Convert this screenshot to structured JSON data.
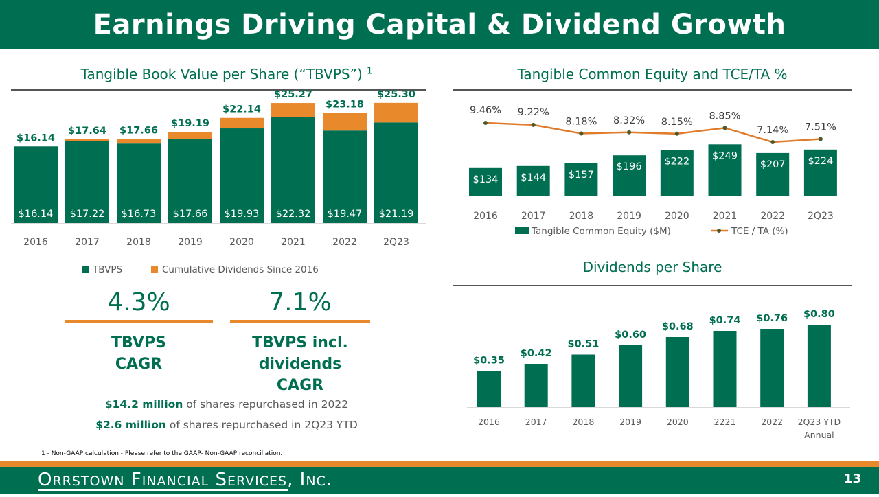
{
  "title": "Earnings Driving Capital & Dividend Growth",
  "tbvps": {
    "title": "Tangible Book Value per Share (“TBVPS”)",
    "footnote_marker": "1",
    "legend": [
      "TBVPS",
      "Cumulative Dividends Since 2016"
    ]
  },
  "tce": {
    "title": "Tangible Common Equity and TCE/TA %",
    "legend": [
      "Tangible Common Equity ($M)",
      "TCE / TA (%)"
    ]
  },
  "dps": {
    "title": "Dividends per Share"
  },
  "metrics": [
    {
      "value": "4.3%",
      "label_lines": [
        "TBVPS",
        "CAGR"
      ]
    },
    {
      "value": "7.1%",
      "label_lines": [
        "TBVPS incl.",
        "dividends",
        "CAGR"
      ]
    }
  ],
  "repurchases": [
    {
      "amount": "$14.2 million",
      "text": " of shares repurchased in 2022"
    },
    {
      "amount": "$2.6 million",
      "text": " of shares repurchased in 2Q23 YTD"
    }
  ],
  "footnote": "1 - Non-GAAP calculation - Please refer to the GAAP- Non-GAAP reconciliation.",
  "company": "Orrstown Financial Services, Inc.",
  "page_number": "13",
  "colors": {
    "green": "#006e51",
    "orange": "#e8892b",
    "line": "#e07b2b"
  },
  "chart_data": [
    {
      "type": "bar",
      "stacked": true,
      "title": "Tangible Book Value per Share (“TBVPS”)",
      "categories": [
        "2016",
        "2017",
        "2018",
        "2019",
        "2020",
        "2021",
        "2022",
        "2Q23"
      ],
      "series": [
        {
          "name": "TBVPS",
          "values": [
            16.14,
            17.22,
            16.73,
            17.66,
            19.93,
            22.32,
            19.47,
            21.19
          ],
          "labels": [
            "$16.14",
            "$17.22",
            "$16.73",
            "$17.66",
            "$19.93",
            "$22.32",
            "$19.47",
            "$21.19"
          ]
        },
        {
          "name": "Cumulative Dividends Since 2016",
          "values": [
            0,
            0.42,
            0.93,
            1.53,
            2.21,
            2.95,
            3.71,
            4.11
          ]
        }
      ],
      "totals": [
        "$16.14",
        "$17.64",
        "$17.66",
        "$19.19",
        "$22.14",
        "$25.27",
        "$23.18",
        "$25.30"
      ],
      "ylim": [
        0,
        26
      ]
    },
    {
      "type": "bar",
      "title": "Tangible Common Equity and TCE/TA %",
      "categories": [
        "2016",
        "2017",
        "2018",
        "2019",
        "2020",
        "2021",
        "2022",
        "2Q23"
      ],
      "series": [
        {
          "name": "Tangible Common Equity ($M)",
          "values": [
            134,
            144,
            157,
            196,
            222,
            249,
            207,
            224
          ],
          "labels": [
            "$134",
            "$144",
            "$157",
            "$196",
            "$222",
            "$249",
            "$207",
            "$224"
          ]
        }
      ],
      "ylim": [
        0,
        300
      ],
      "line_series": {
        "name": "TCE / TA (%)",
        "values": [
          9.46,
          9.22,
          8.18,
          8.32,
          8.15,
          8.85,
          7.14,
          7.51
        ],
        "labels": [
          "9.46%",
          "9.22%",
          "8.18%",
          "8.32%",
          "8.15%",
          "8.85%",
          "7.14%",
          "7.51%"
        ],
        "ylim": [
          0,
          10
        ]
      }
    },
    {
      "type": "bar",
      "title": "Dividends per Share",
      "categories": [
        "2016",
        "2017",
        "2018",
        "2019",
        "2020",
        "2221",
        "2022",
        "2Q23 YTD"
      ],
      "category_sublabels": [
        "",
        "",
        "",
        "",
        "",
        "",
        "",
        "Annual"
      ],
      "values": [
        0.35,
        0.42,
        0.51,
        0.6,
        0.68,
        0.74,
        0.76,
        0.8
      ],
      "labels": [
        "$0.35",
        "$0.42",
        "$0.51",
        "$0.60",
        "$0.68",
        "$0.74",
        "$0.76",
        "$0.80"
      ],
      "ylim": [
        0,
        0.9
      ]
    }
  ]
}
